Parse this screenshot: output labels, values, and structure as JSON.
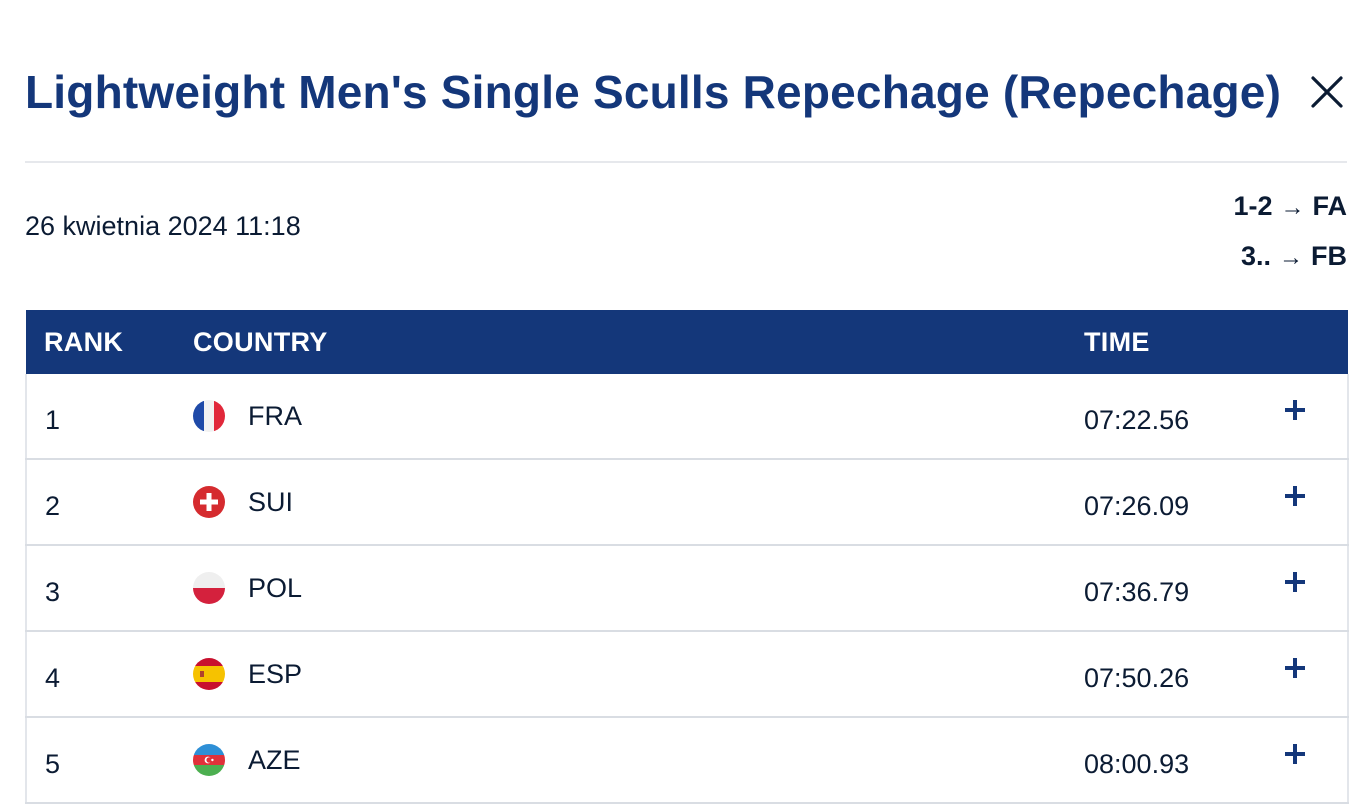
{
  "header": {
    "title": "Lightweight Men's Single Sculls Repechage (Repechage)",
    "close_icon": "close-icon"
  },
  "meta": {
    "date": "26 kwietnia 2024 11:18",
    "progression": [
      {
        "ranks": "1-2",
        "arrow": "→",
        "final": "FA"
      },
      {
        "ranks": "3..",
        "arrow": "→",
        "final": "FB"
      }
    ]
  },
  "table": {
    "headers": {
      "rank": "RANK",
      "country": "COUNTRY",
      "time": "TIME"
    },
    "rows": [
      {
        "rank": "1",
        "country": "FRA",
        "flag": "france-flag-icon",
        "time": "07:22.56"
      },
      {
        "rank": "2",
        "country": "SUI",
        "flag": "switzerland-flag-icon",
        "time": "07:26.09"
      },
      {
        "rank": "3",
        "country": "POL",
        "flag": "poland-flag-icon",
        "time": "07:36.79"
      },
      {
        "rank": "4",
        "country": "ESP",
        "flag": "spain-flag-icon",
        "time": "07:50.26"
      },
      {
        "rank": "5",
        "country": "AZE",
        "flag": "azerbaijan-flag-icon",
        "time": "08:00.93"
      }
    ],
    "expand_icon": "plus-icon"
  },
  "colors": {
    "title": "#14377a",
    "header_bg": "#14377a",
    "header_text": "#ffffff",
    "text": "#0b1b33",
    "divider": "#d9dde3"
  }
}
